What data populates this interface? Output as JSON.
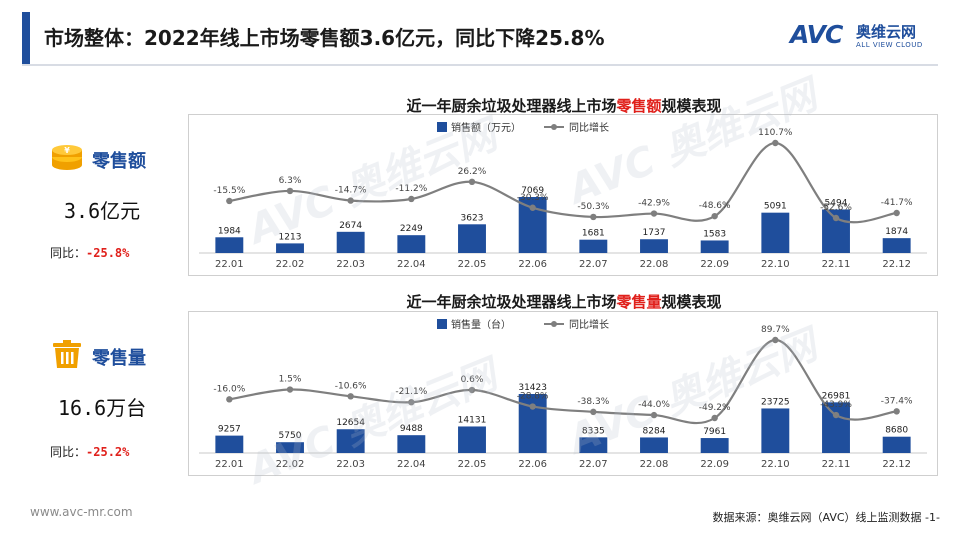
{
  "header": {
    "title": "市场整体：2022年线上市场零售额3.6亿元，同比下降25.8%",
    "logo_mark": "AVC",
    "logo_cn": "奥维云网",
    "logo_en": "ALL VIEW CLOUD"
  },
  "kpi_sales": {
    "icon": "coin-stack-icon",
    "name": "零售额",
    "value": "3.6亿元",
    "yoy_label": "同比：",
    "yoy_value": "-25.8%"
  },
  "kpi_volume": {
    "icon": "trash-bin-icon",
    "name": "零售量",
    "value": "16.6万台",
    "yoy_label": "同比：",
    "yoy_value": "-25.2%"
  },
  "chart_data": [
    {
      "type": "bar",
      "title_pre": "近一年厨余垃圾处理器线上市场",
      "title_hl": "零售额",
      "title_post": "规模表现",
      "categories": [
        "22.01",
        "22.02",
        "22.03",
        "22.04",
        "22.05",
        "22.06",
        "22.07",
        "22.08",
        "22.09",
        "22.10",
        "22.11",
        "22.12"
      ],
      "series": [
        {
          "name": "销售额（万元）",
          "kind": "bar",
          "values": [
            1984,
            1213,
            2674,
            2249,
            3623,
            7069,
            1681,
            1737,
            1583,
            5091,
            5494,
            1874
          ]
        },
        {
          "name": "同比增长",
          "kind": "line",
          "values": [
            -15.5,
            6.3,
            -14.7,
            -11.2,
            26.2,
            -30.3,
            -50.3,
            -42.9,
            -48.6,
            110.7,
            -52.6,
            -41.7
          ]
        }
      ],
      "line_labels": [
        "-15.5%",
        "6.3%",
        "-14.7%",
        "-11.2%",
        "26.2%",
        "-30.3%",
        "-50.3%",
        "-42.9%",
        "-48.6%",
        "110.7%",
        "-52.6%",
        "-41.7%"
      ],
      "legend_position": "top",
      "colors": {
        "bar": "#1f4e9c",
        "line": "#7f7f7f"
      }
    },
    {
      "type": "bar",
      "title_pre": "近一年厨余垃圾处理器线上市场",
      "title_hl": "零售量",
      "title_post": "规模表现",
      "categories": [
        "22.01",
        "22.02",
        "22.03",
        "22.04",
        "22.05",
        "22.06",
        "22.07",
        "22.08",
        "22.09",
        "22.10",
        "22.11",
        "22.12"
      ],
      "series": [
        {
          "name": "销售量（台）",
          "kind": "bar",
          "values": [
            9257,
            5750,
            12654,
            9488,
            14131,
            31423,
            8335,
            8284,
            7961,
            23725,
            26981,
            8680
          ]
        },
        {
          "name": "同比增长",
          "kind": "line",
          "values": [
            -16.0,
            1.5,
            -10.6,
            -21.1,
            0.6,
            -28.8,
            -38.3,
            -44.0,
            -49.2,
            89.7,
            -43.9,
            -37.4
          ]
        }
      ],
      "line_labels": [
        "-16.0%",
        "1.5%",
        "-10.6%",
        "-21.1%",
        "0.6%",
        "-28.8%",
        "-38.3%",
        "-44.0%",
        "-49.2%",
        "89.7%",
        "-43.9%",
        "-37.4%"
      ],
      "legend_position": "top",
      "colors": {
        "bar": "#1f4e9c",
        "line": "#7f7f7f"
      }
    }
  ],
  "footer": {
    "url": "www.avc-mr.com",
    "source": "数据来源：奥维云网（AVC）线上监测数据 -1-"
  }
}
